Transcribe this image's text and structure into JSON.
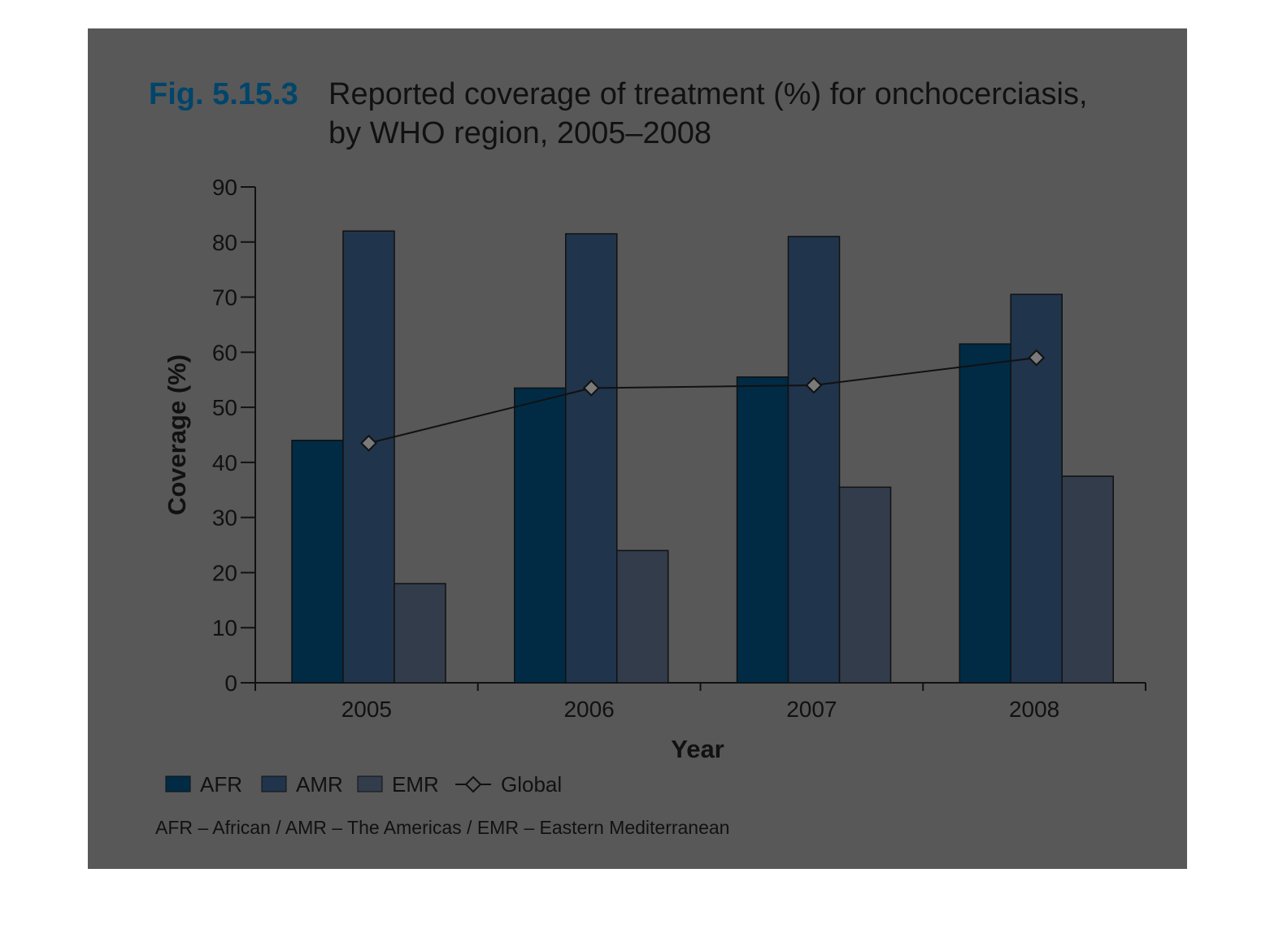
{
  "figure": {
    "number": "Fig. 5.15.3",
    "title_line1": "Reported coverage of treatment (%) for onchocerciasis,",
    "title_line2": "by WHO region, 2005–2008"
  },
  "footnote": "AFR – African / AMR – The Americas / EMR – Eastern Mediterranean",
  "colors": {
    "background": "#585858",
    "AFR": "#012b45",
    "AMR": "#20344c",
    "EMR": "#323c4b",
    "global_line": "#111111",
    "global_marker": "#7a7a7a",
    "title_accent": "#00456b"
  },
  "chart_data": {
    "type": "bar",
    "categories": [
      "2005",
      "2006",
      "2007",
      "2008"
    ],
    "series": [
      {
        "name": "AFR",
        "values": [
          44,
          53.5,
          55.5,
          61.5
        ]
      },
      {
        "name": "AMR",
        "values": [
          82,
          81.5,
          81,
          70.5
        ]
      },
      {
        "name": "EMR",
        "values": [
          18,
          24,
          35.5,
          37.5
        ]
      }
    ],
    "line_series": [
      {
        "name": "Global",
        "marker": "diamond",
        "values": [
          43.5,
          53.5,
          54,
          59
        ]
      }
    ],
    "xlabel": "Year",
    "ylabel": "Coverage (%)",
    "ylim": [
      0,
      90
    ],
    "yticks": [
      0,
      10,
      20,
      30,
      40,
      50,
      60,
      70,
      80,
      90
    ],
    "grid": false,
    "legend_position": "bottom-left"
  }
}
